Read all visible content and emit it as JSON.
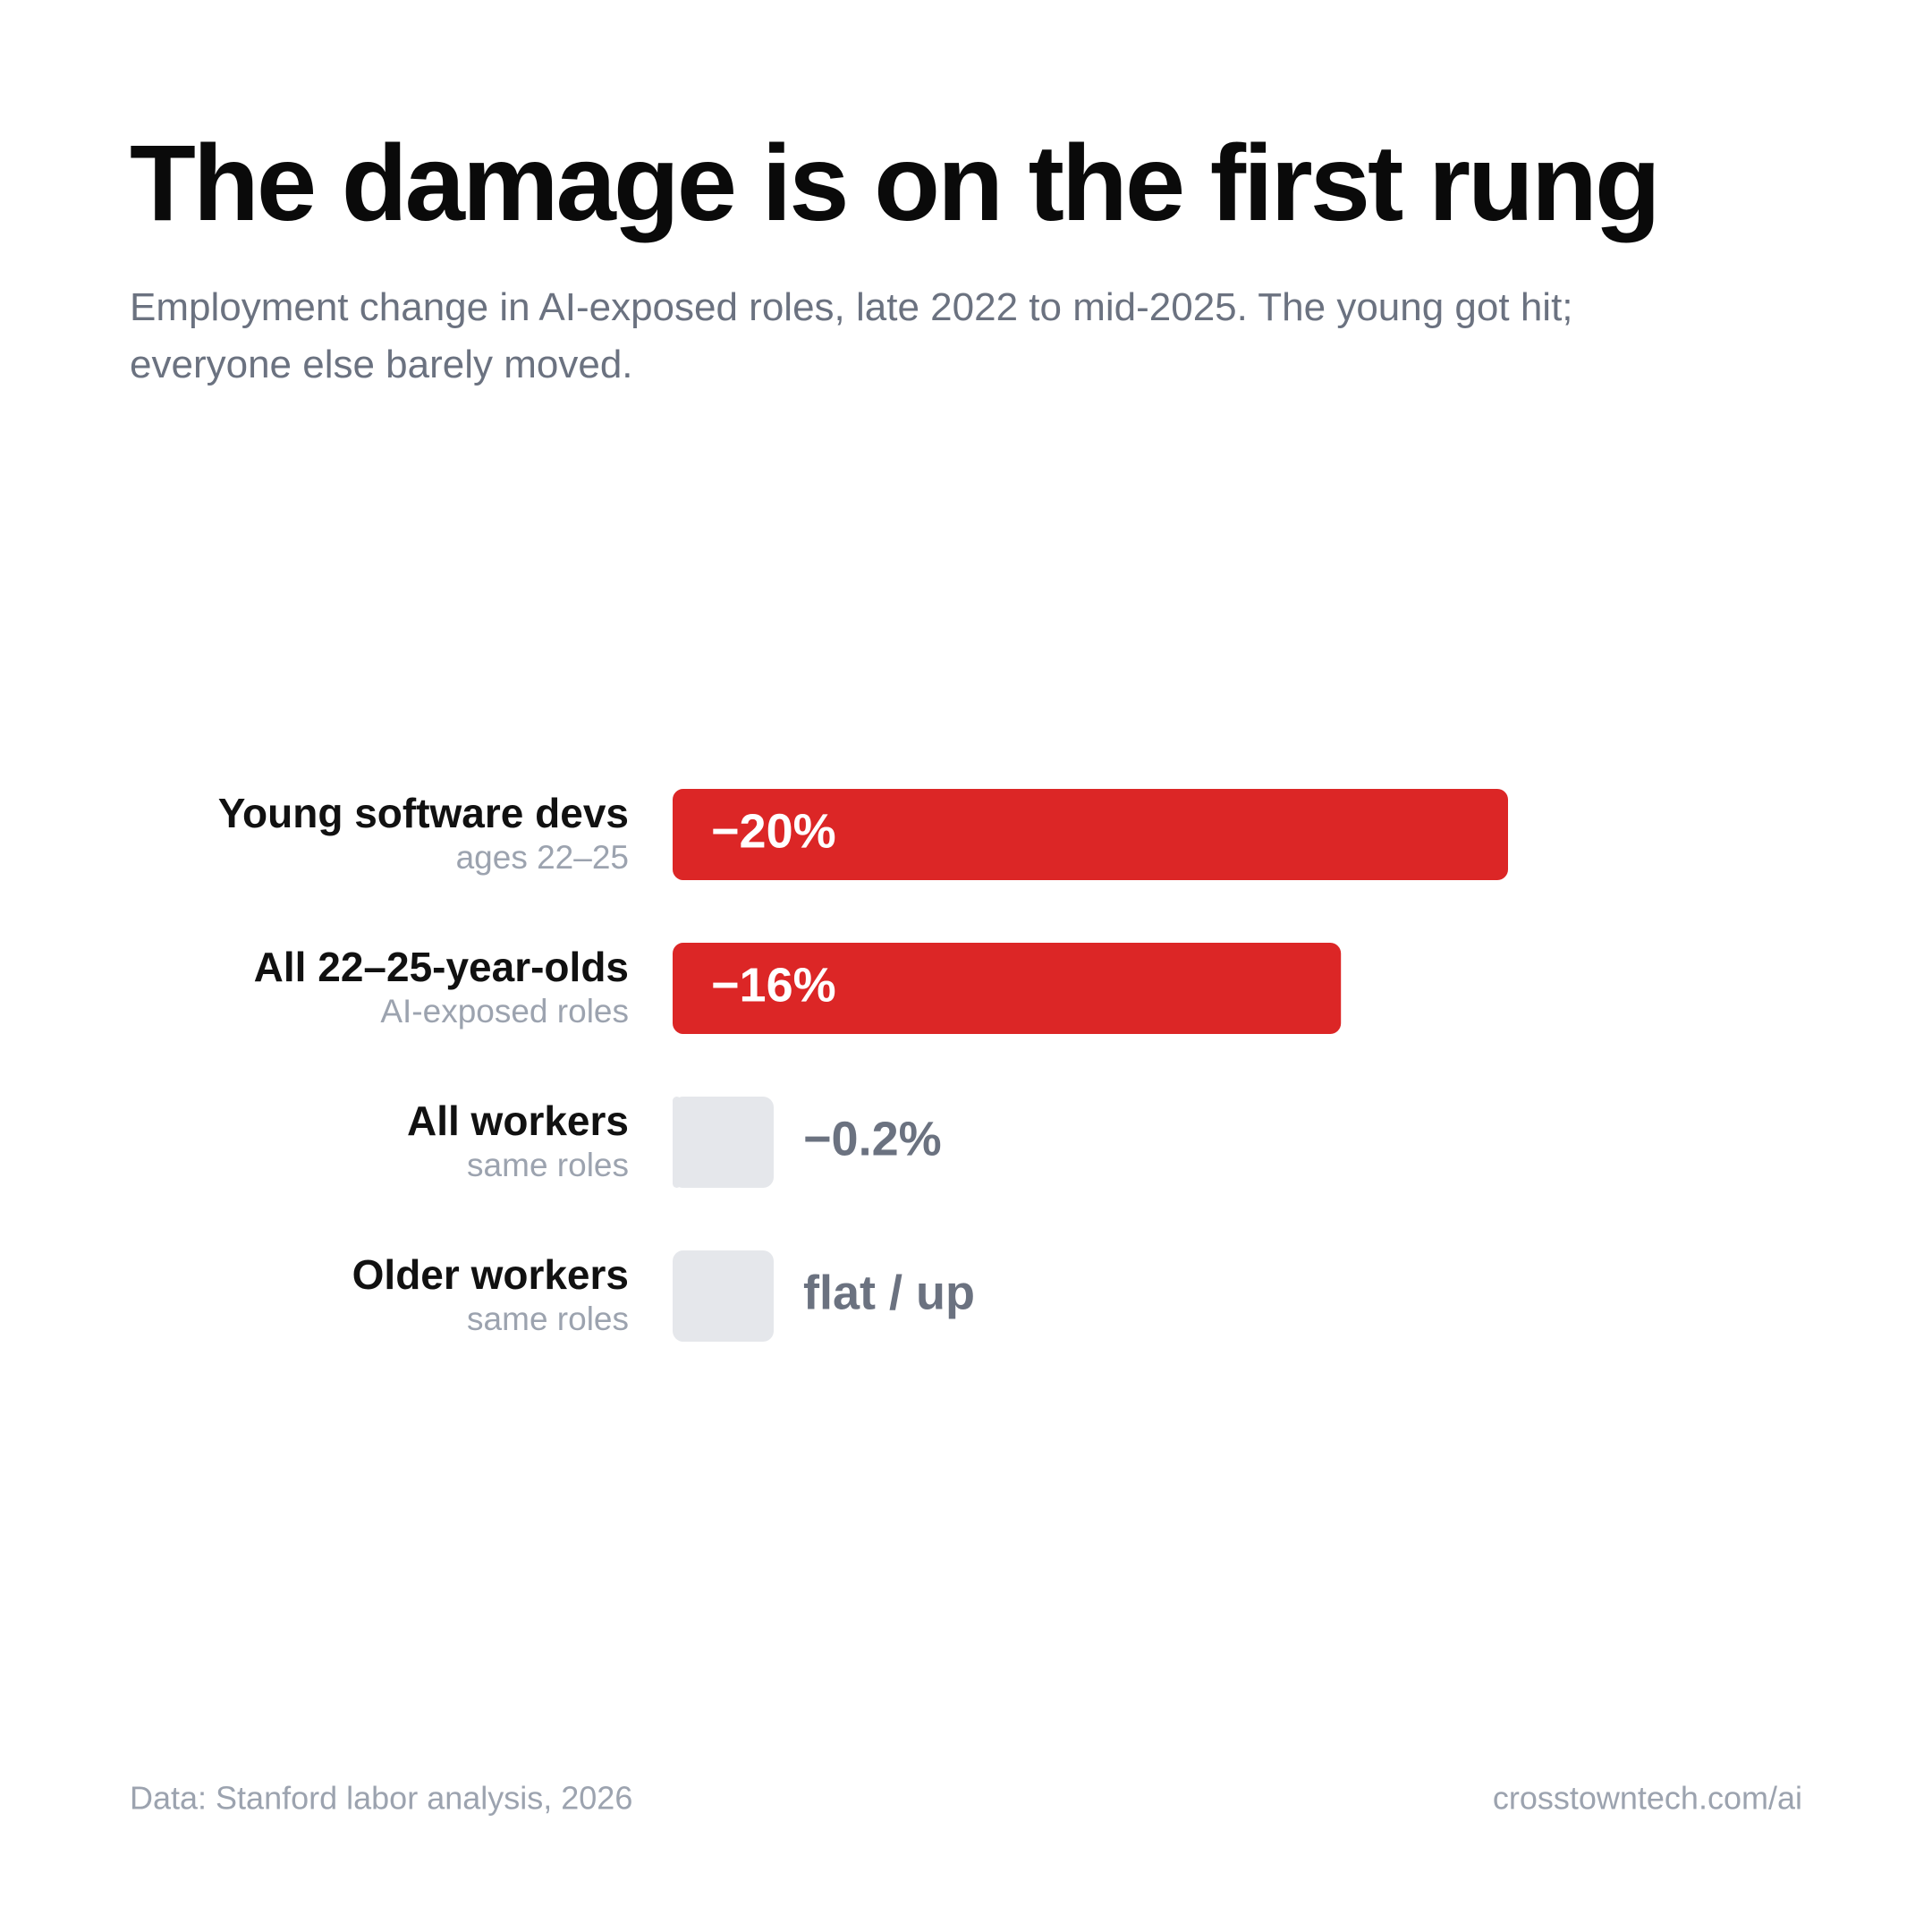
{
  "chart_data": {
    "type": "bar",
    "orientation": "horizontal",
    "title": "The damage is on the first rung",
    "subtitle": "Employment change in AI-exposed roles, late 2022 to mid-2025. The young got hit; everyone else barely moved.",
    "categories": [
      "Young software devs",
      "All 22–25-year-olds",
      "All workers",
      "Older workers"
    ],
    "category_notes": [
      "ages 22–25",
      "AI-exposed roles",
      "same roles",
      "same roles"
    ],
    "values": [
      -20,
      -16,
      -0.2,
      null
    ],
    "value_labels": [
      "−20%",
      "−16%",
      "−0.2%",
      "flat / up"
    ],
    "colors": [
      "#dc2626",
      "#dc2626",
      "#e5e7eb",
      "#e5e7eb"
    ],
    "xlim": [
      0,
      -20
    ],
    "source": "Data: Stanford labor analysis, 2026",
    "credit": "crosstowntech.com/ai"
  }
}
